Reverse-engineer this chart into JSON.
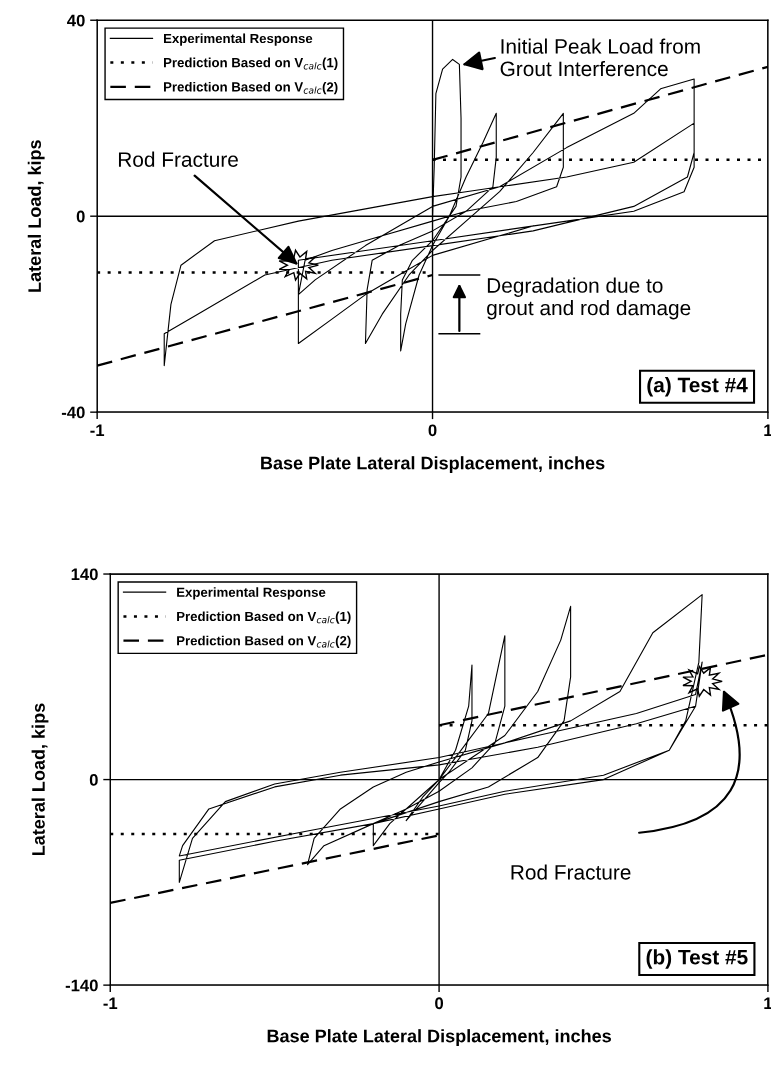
{
  "chart_data": [
    {
      "type": "line",
      "xlabel": "Base Plate Lateral Displacement, inches",
      "ylabel": "Lateral Load, kips",
      "xlim": [
        -1,
        1
      ],
      "xticks": [
        -1,
        0,
        1
      ],
      "ylim": [
        -40,
        40
      ],
      "yticks": [
        -40,
        0,
        40
      ],
      "grid": true,
      "legend": "top left",
      "series": [
        {
          "name": "Experimental Response",
          "color": "#000000",
          "line_style": "solid",
          "x": [
            0,
            0.005,
            0.01,
            0.03,
            0.06,
            0.08,
            0.085,
            0.085,
            0.07,
            0.0,
            -0.06,
            -0.09,
            -0.095,
            -0.095,
            -0.08,
            -0.04,
            0,
            0.05,
            0.1,
            0.15,
            0.19,
            0.19,
            0.18,
            0.1,
            0,
            -0.1,
            -0.18,
            -0.195,
            -0.2,
            -0.15,
            -0.07,
            0,
            0.1,
            0.2,
            0.3,
            0.39,
            0.39,
            0.37,
            0.25,
            0.1,
            0,
            -0.15,
            -0.3,
            -0.38,
            -0.4,
            -0.35,
            -0.2,
            -0.1,
            0,
            0.2,
            0.4,
            0.6,
            0.68,
            0.78,
            0.78,
            0.76,
            0.6,
            0.3,
            0,
            -0.3,
            -0.5,
            -0.7,
            -0.8,
            -0.8,
            -0.78,
            -0.75,
            -0.65,
            -0.4,
            -0.2,
            0,
            0.1,
            0.4,
            0.6,
            0.78,
            0.78,
            0.75,
            0.6,
            0.4,
            0,
            -0.2,
            -0.4,
            -0.4,
            -0.4,
            -0.3,
            -0.2,
            -0.1,
            0,
            0.2,
            0.3
          ],
          "values": [
            0,
            10,
            25,
            30,
            32,
            31,
            20,
            8,
            2,
            -5,
            -9,
            -13,
            -20,
            -27.5,
            -22,
            -12,
            -6,
            0,
            8,
            15,
            21,
            12,
            6,
            1,
            -3,
            -6,
            -9,
            -15,
            -26,
            -20,
            -12,
            -7,
            -1,
            5,
            13,
            21,
            10,
            6,
            3,
            1,
            -1,
            -4,
            -7,
            -9,
            -16,
            -13,
            -6,
            -2,
            2,
            6,
            14,
            21,
            26,
            28,
            13,
            8,
            2,
            -3,
            -6,
            -9,
            -12,
            -20,
            -24,
            -30.5,
            -18,
            -10,
            -5,
            -1,
            1.5,
            4,
            5,
            8,
            11,
            19,
            10,
            5,
            1,
            -1,
            -5,
            -7,
            -9,
            -19,
            -26,
            -21,
            -16,
            -12,
            -8,
            -4,
            -2
          ]
        },
        {
          "name": "Prediction Based on V$_{calc}$(1)",
          "color": "#000000",
          "line_style": "dotted",
          "x": [
            -1,
            0
          ],
          "values": [
            -11.5,
            -11.5
          ]
        },
        {
          "color": "#000000",
          "line_style": "dotted",
          "x": [
            0,
            1
          ],
          "values": [
            11.5,
            11.5
          ]
        },
        {
          "name": "Prediction Based on V$_{calc}$(2)",
          "color": "#000000",
          "line_style": "dashed",
          "x": [
            -1,
            0
          ],
          "values": [
            -30.5,
            -12
          ]
        },
        {
          "color": "#000000",
          "line_style": "dashed",
          "x": [
            0,
            1
          ],
          "values": [
            11.5,
            30.5
          ]
        }
      ],
      "annotations": [
        "Initial Peak Load from\nGrout Interference",
        {
          "text": "Rod Fracture",
          "x": -0.4,
          "y": -10
        },
        "Degradation due to\ngrout and rod damage",
        "(a) Test #4"
      ]
    },
    {
      "type": "line",
      "xlabel": "Base Plate Lateral Displacement, inches",
      "ylabel": "Lateral Load, kips",
      "xlim": [
        -1,
        1
      ],
      "xticks": [
        -1,
        0,
        1
      ],
      "ylim": [
        -140,
        140
      ],
      "yticks": [
        -140,
        0,
        140
      ],
      "grid": true,
      "legend": "top left",
      "series": [
        {
          "name": "Experimental Response",
          "color": "#000000",
          "line_style": "solid",
          "x": [
            0,
            0.05,
            0.09,
            0.1,
            0.1,
            0.08,
            0.03,
            0,
            -0.05,
            -0.1,
            -0.05,
            0,
            0.05,
            0.15,
            0.2,
            0.2,
            0.17,
            0.1,
            0,
            -0.1,
            -0.2,
            -0.2,
            -0.15,
            -0.05,
            0,
            0.1,
            0.2,
            0.3,
            0.37,
            0.4,
            0.4,
            0.38,
            0.3,
            0.15,
            0,
            -0.2,
            -0.35,
            -0.4,
            -0.38,
            -0.3,
            -0.2,
            -0.1,
            0,
            0.2,
            0.4,
            0.55,
            0.65,
            0.8,
            0.79,
            0.75,
            0.7,
            0.5,
            0.2,
            0,
            -0.2,
            -0.5,
            -0.79,
            -0.79,
            -0.75,
            -0.65,
            -0.5,
            -0.3,
            0,
            0.3,
            0.6,
            0.78,
            0.8,
            0.78,
            0.7,
            0.5,
            0.2,
            0,
            -0.4,
            -0.79,
            -0.78,
            -0.7,
            -0.5,
            -0.3,
            0,
            0.3,
            0.6,
            0.78
          ],
          "values": [
            0,
            20,
            50,
            78,
            40,
            20,
            5,
            -2,
            -15,
            -28,
            -12,
            0,
            15,
            45,
            98,
            50,
            25,
            8,
            -8,
            -20,
            -30,
            -45,
            -30,
            -10,
            0,
            15,
            30,
            60,
            95,
            118,
            70,
            40,
            15,
            -5,
            -15,
            -30,
            -45,
            -58,
            -40,
            -20,
            -5,
            5,
            12,
            25,
            40,
            60,
            100,
            126,
            80,
            40,
            20,
            0,
            -10,
            -20,
            -30,
            -42,
            -55,
            -70,
            -40,
            -15,
            -3,
            5,
            15,
            30,
            45,
            58,
            80,
            50,
            20,
            3,
            -8,
            -18,
            -35,
            -52,
            -45,
            -20,
            -5,
            3,
            10,
            22,
            38,
            50
          ]
        },
        {
          "name": "Prediction Based on V$_{calc}$(1)",
          "color": "#000000",
          "line_style": "dotted",
          "x": [
            -1,
            0
          ],
          "values": [
            -37,
            -37
          ]
        },
        {
          "color": "#000000",
          "line_style": "dotted",
          "x": [
            0,
            1
          ],
          "values": [
            37,
            37
          ]
        },
        {
          "name": "Prediction Based on V$_{calc}$(2)",
          "color": "#000000",
          "line_style": "dashed",
          "x": [
            -1,
            0
          ],
          "values": [
            -84,
            -38
          ]
        },
        {
          "color": "#000000",
          "line_style": "dashed",
          "x": [
            0,
            1
          ],
          "values": [
            37,
            85
          ]
        }
      ],
      "annotations": [
        "Rod Fracture",
        "(b) Test #5"
      ]
    }
  ]
}
